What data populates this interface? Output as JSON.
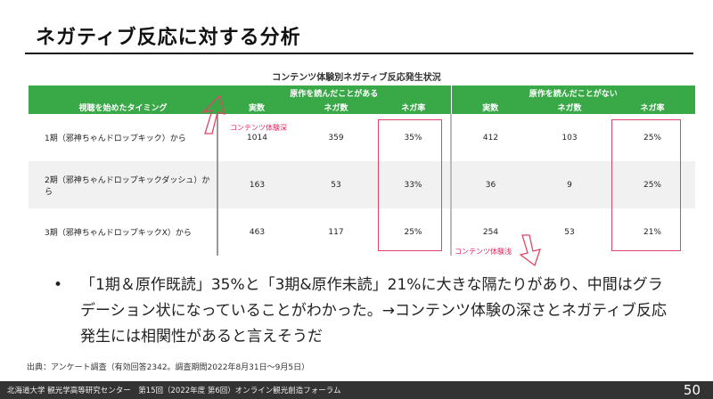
{
  "slide": {
    "title": "ネガティブ反応に対する分析",
    "page_number": "50"
  },
  "table": {
    "caption": "コンテンツ体験別ネガティブ反応発生状況",
    "group_headers": [
      "原作を読んだことがある",
      "原作を読んだことがない"
    ],
    "row_header": "視聴を始めたタイミング",
    "col_headers": [
      "実数",
      "ネガ数",
      "ネガ率",
      "実数",
      "ネガ数",
      "ネガ率"
    ],
    "rows": [
      {
        "label": "1期（邪神ちゃんドロップキック）から",
        "cells": [
          "1014",
          "359",
          "35%",
          "412",
          "103",
          "25%"
        ]
      },
      {
        "label": "2期（邪神ちゃんドロップキックダッシュ）から",
        "cells": [
          "163",
          "53",
          "33%",
          "36",
          "9",
          "25%"
        ]
      },
      {
        "label": "3期（邪神ちゃんドロップキックX）から",
        "cells": [
          "463",
          "117",
          "25%",
          "254",
          "53",
          "21%"
        ]
      }
    ]
  },
  "annotations": {
    "deep": "コンテンツ体験深",
    "shallow": "コンテンツ体験浅",
    "accent_color": "#e04565"
  },
  "bullet": {
    "marker": "•",
    "text": "「1期＆原作既読」35%と「3期&原作未読」21%に大きな隔たりがあり、中間はグラデーション状になっていることがわかった。→コンテンツ体験の深さとネガティブ反応発生には相関性があると言えそうだ"
  },
  "source": "出典：アンケート調査（有効回答2342。調査期間2022年8月31日〜9月5日）",
  "footer": "北海道大学 観光学高等研究センター　第15回（2022年度 第6回）オンライン観光創造フォーラム",
  "colors": {
    "header_green": "#39a847",
    "footer_bg": "#333333"
  }
}
